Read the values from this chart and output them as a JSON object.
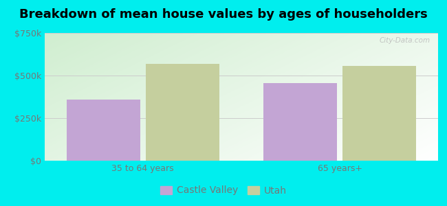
{
  "title": "Breakdown of mean house values by ages of householders",
  "categories": [
    "35 to 64 years",
    "65 years+"
  ],
  "series": {
    "Castle Valley": [
      360000,
      455000
    ],
    "Utah": [
      570000,
      555000
    ]
  },
  "bar_colors": {
    "Castle Valley": "#c3a5d4",
    "Utah": "#c5cf9e"
  },
  "ylim": [
    0,
    750000
  ],
  "yticks": [
    0,
    250000,
    500000,
    750000
  ],
  "ytick_labels": [
    "$0",
    "$250k",
    "$500k",
    "$750k"
  ],
  "figure_bg": "#00eeee",
  "plot_bg_top_left": "#c8e8c8",
  "plot_bg_bottom_right": "#f0faf0",
  "title_fontsize": 13,
  "tick_fontsize": 9,
  "legend_fontsize": 10,
  "bar_width": 0.28,
  "watermark": "City-Data.com"
}
